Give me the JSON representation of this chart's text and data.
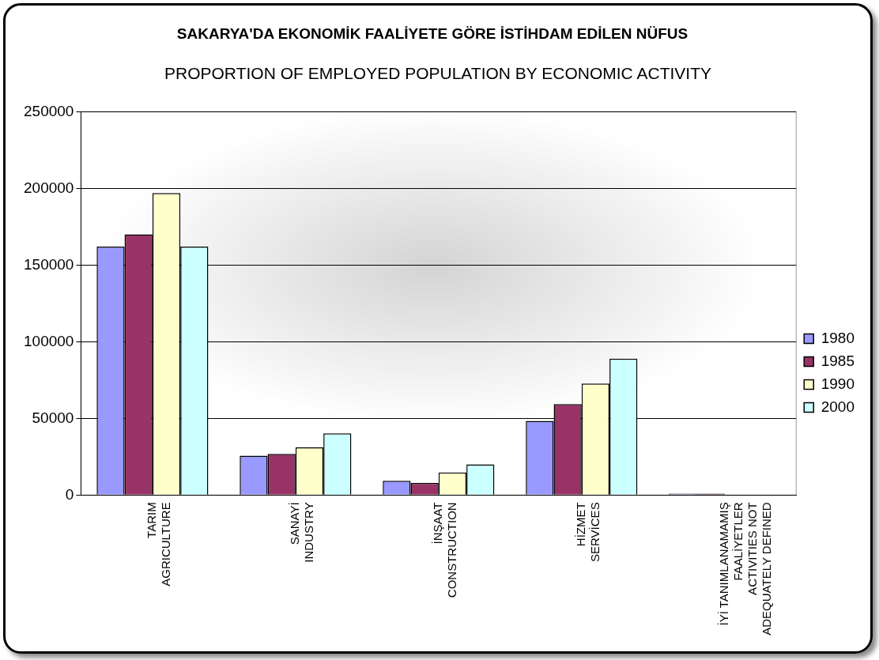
{
  "chart_data": {
    "type": "bar",
    "title": "SAKARYA'DA EKONOMİK FAALİYETE GÖRE İSTİHDAM EDİLEN NÜFUS",
    "subtitle": "PROPORTION OF EMPLOYED POPULATION BY ECONOMIC ACTIVITY",
    "categories": [
      "TARIM\nAGRICULTURE",
      "SANAYİ\nINDUSTRY",
      "İNŞAAT\nCONSTRUCTION",
      "HİZMET\nSERVİCES",
      "İYİ TANIMLANAMAMIŞ\nFAALİYETLER\nACTIVITIES NOT\nADEQUATELY DEFINED"
    ],
    "series": [
      {
        "name": "1980",
        "color": "#9999ff",
        "values": [
          162000,
          25700,
          9300,
          48400,
          1000
        ]
      },
      {
        "name": "1985",
        "color": "#993366",
        "values": [
          170000,
          26800,
          7900,
          59300,
          1000
        ]
      },
      {
        "name": "1990",
        "color": "#ffffcc",
        "values": [
          197000,
          31100,
          14700,
          72800,
          null
        ]
      },
      {
        "name": "2000",
        "color": "#ccffff",
        "values": [
          162000,
          40300,
          20000,
          89000,
          null
        ]
      }
    ],
    "ylim": [
      0,
      250000
    ],
    "yticks": [
      0,
      50000,
      100000,
      150000,
      200000,
      250000
    ],
    "grid": "y",
    "legend": "right"
  }
}
